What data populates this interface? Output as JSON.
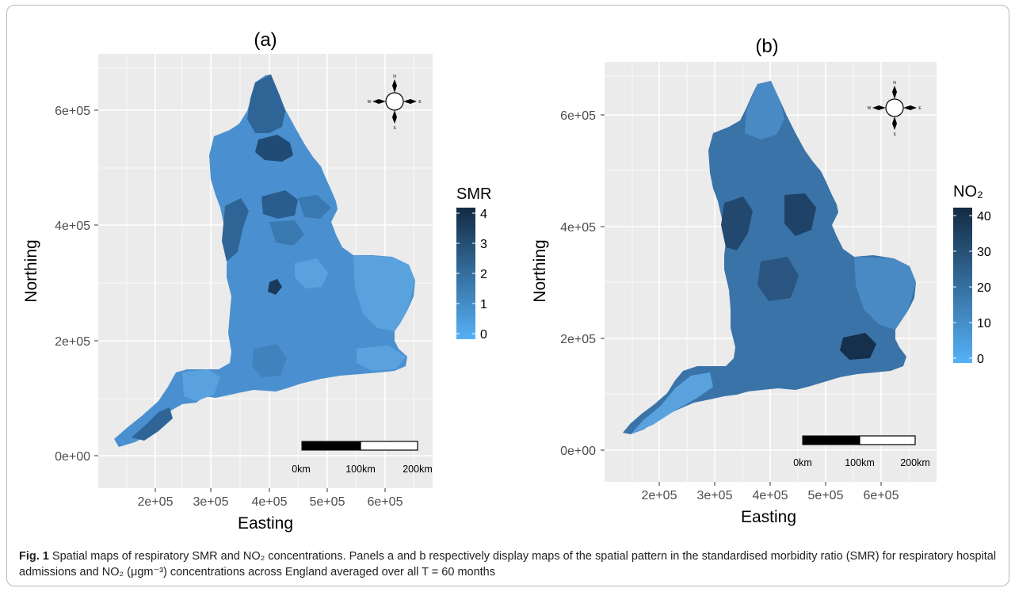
{
  "figure": {
    "caption": {
      "label": "Fig. 1",
      "text": "Spatial maps of respiratory SMR and NO₂ concentrations. Panels a and b respectively display maps of the spatial pattern in the standardised morbidity ratio (SMR) for respiratory hospital admissions and NO₂ (μgm⁻³) concentrations across England averaged over all T = 60 months"
    }
  },
  "panels": [
    {
      "title": "(a)",
      "xlabel": "Easting",
      "ylabel": "Northing",
      "x_ticks": [
        "2e+05",
        "3e+05",
        "4e+05",
        "5e+05",
        "6e+05"
      ],
      "y_ticks": [
        "0e+00",
        "2e+05",
        "4e+05",
        "6e+05"
      ],
      "legend": {
        "title": "SMR",
        "min": 0,
        "max": 4,
        "ticks": [
          "0",
          "1",
          "2",
          "3",
          "4"
        ]
      },
      "scale_bar": [
        "0km",
        "100km",
        "200km"
      ],
      "compass": {
        "n": "N",
        "s": "S",
        "e": "E",
        "w": "W"
      }
    },
    {
      "title": "(b)",
      "xlabel": "Easting",
      "ylabel": "Northing",
      "x_ticks": [
        "2e+05",
        "3e+05",
        "4e+05",
        "5e+05",
        "6e+05"
      ],
      "y_ticks": [
        "0e+00",
        "2e+05",
        "4e+05",
        "6e+05"
      ],
      "legend": {
        "title": "NO₂",
        "min": 0,
        "max": 40,
        "ticks": [
          "0",
          "10",
          "20",
          "30",
          "40"
        ]
      },
      "scale_bar": [
        "0km",
        "100km",
        "200km"
      ],
      "compass": {
        "n": "N",
        "s": "S",
        "e": "E",
        "w": "W"
      }
    }
  ],
  "colors": {
    "panel_background": "#ebebeb",
    "gridline": "#ffffff",
    "low": "#56b1f7",
    "high": "#132b43",
    "map_a_fill": "#4a90d0",
    "map_b_fill": "#3a73a8"
  }
}
